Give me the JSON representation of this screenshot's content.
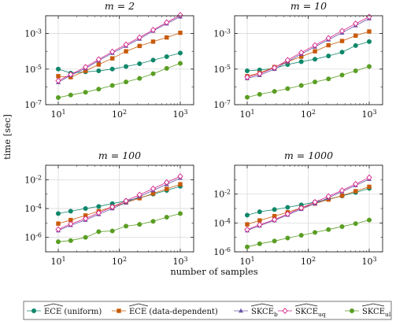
{
  "figure": {
    "xlabel": "number of samples",
    "ylabel": "time [sec]"
  },
  "legend": [
    {
      "label": "ECE (uniform)",
      "color": "#10876b",
      "marker": "circle"
    },
    {
      "label": "ECE (data-dependent)",
      "color": "#c85a0a",
      "marker": "square"
    },
    {
      "label": "SKCE_b",
      "color": "#6b56a6",
      "marker": "triangle"
    },
    {
      "label": "SKCE_uq",
      "color": "#d6248a",
      "marker": "diamond"
    },
    {
      "label": "SKCE_ul",
      "color": "#5a9e24",
      "marker": "circle"
    }
  ],
  "chart_data": [
    {
      "type": "line",
      "title": "m = 2",
      "xscale": "log",
      "yscale": "log",
      "xlim": [
        10,
        1000
      ],
      "ylim": [
        1e-07,
        0.01
      ],
      "xticks": [
        "10^1",
        "10^2",
        "10^3"
      ],
      "yticks": [
        "10^-7",
        "10^-5",
        "10^-3"
      ],
      "grid": true,
      "x": [
        10,
        16,
        28,
        46,
        77,
        129,
        215,
        359,
        599,
        1000
      ],
      "series": [
        {
          "name": "ECE (uniform)",
          "values": [
            1e-05,
            6e-06,
            7e-06,
            8e-06,
            1e-05,
            1.4e-05,
            2e-05,
            3.2e-05,
            5e-05,
            8e-05
          ]
        },
        {
          "name": "ECE (data-dependent)",
          "values": [
            4e-06,
            3.5e-06,
            8e-06,
            1.8e-05,
            4e-05,
            0.0001,
            0.0002,
            0.00035,
            0.0006,
            0.0011
          ]
        },
        {
          "name": "SKCE_b",
          "values": [
            1.8e-06,
            4.5e-06,
            1.1e-05,
            3e-05,
            8e-05,
            0.0002,
            0.0005,
            0.0014,
            0.0036,
            0.009
          ]
        },
        {
          "name": "SKCE_uq",
          "values": [
            2.2e-06,
            5e-06,
            1.3e-05,
            3.5e-05,
            9.5e-05,
            0.00024,
            0.0006,
            0.0016,
            0.0042,
            0.011
          ]
        },
        {
          "name": "SKCE_ul",
          "values": [
            2.5e-07,
            3.5e-07,
            5e-07,
            7.5e-07,
            1.2e-06,
            1.9e-06,
            3e-06,
            5.5e-06,
            1.1e-05,
            2.1e-05
          ]
        }
      ]
    },
    {
      "type": "line",
      "title": "m = 10",
      "xscale": "log",
      "yscale": "log",
      "xlim": [
        10,
        1000
      ],
      "ylim": [
        1e-07,
        0.01
      ],
      "xticks": [
        "10^1",
        "10^2",
        "10^3"
      ],
      "yticks": [
        "10^-7",
        "10^-5",
        "10^-3"
      ],
      "grid": true,
      "x": [
        10,
        16,
        28,
        46,
        77,
        129,
        215,
        359,
        599,
        1000
      ],
      "series": [
        {
          "name": "ECE (uniform)",
          "values": [
            8e-06,
            9e-06,
            1.1e-05,
            1.8e-05,
            2.6e-05,
            3.6e-05,
            5.5e-05,
            9e-05,
            0.00021,
            0.00035
          ]
        },
        {
          "name": "ECE (data-dependent)",
          "values": [
            4e-06,
            6e-06,
            1.3e-05,
            2.6e-05,
            5e-05,
            0.0001,
            0.00022,
            0.00038,
            0.00076,
            0.0013
          ]
        },
        {
          "name": "SKCE_b",
          "values": [
            3e-06,
            4.5e-06,
            1e-05,
            2.6e-05,
            7e-05,
            0.00018,
            0.00045,
            0.0011,
            0.0028,
            0.007
          ]
        },
        {
          "name": "SKCE_uq",
          "values": [
            3.5e-06,
            5.5e-06,
            1.2e-05,
            3.2e-05,
            8.5e-05,
            0.00022,
            0.00055,
            0.0014,
            0.0036,
            0.0087
          ]
        },
        {
          "name": "SKCE_ul",
          "values": [
            2.6e-07,
            3.8e-07,
            5.6e-07,
            8e-07,
            1.2e-06,
            1.9e-06,
            2.8e-06,
            4.6e-06,
            8e-06,
            1.4e-05
          ]
        }
      ]
    },
    {
      "type": "line",
      "title": "m = 100",
      "xscale": "log",
      "yscale": "log",
      "xlim": [
        10,
        1000
      ],
      "ylim": [
        1e-07,
        0.1
      ],
      "xticks": [
        "10^1",
        "10^2",
        "10^3"
      ],
      "yticks": [
        "10^-6",
        "10^-4",
        "10^-2"
      ],
      "grid": true,
      "x": [
        10,
        16,
        28,
        46,
        77,
        129,
        215,
        359,
        599,
        1000
      ],
      "series": [
        {
          "name": "ECE (uniform)",
          "values": [
            4.5e-05,
            6.5e-05,
            0.0001,
            0.00014,
            0.00022,
            0.00034,
            0.00056,
            0.001,
            0.0018,
            0.0035
          ]
        },
        {
          "name": "ECE (data-dependent)",
          "values": [
            9e-06,
            1.6e-05,
            3.3e-05,
            6.5e-05,
            0.00013,
            0.00026,
            0.00052,
            0.0011,
            0.0023,
            0.0048
          ]
        },
        {
          "name": "SKCE_b",
          "values": [
            3e-06,
            7e-06,
            1.6e-05,
            4e-05,
            0.0001,
            0.00026,
            0.00068,
            0.0018,
            0.0048,
            0.013
          ]
        },
        {
          "name": "SKCE_uq",
          "values": [
            3.6e-06,
            8.5e-06,
            2e-05,
            5e-05,
            0.00013,
            0.00034,
            0.0009,
            0.0024,
            0.0065,
            0.017
          ]
        },
        {
          "name": "SKCE_ul",
          "values": [
            5e-07,
            6e-07,
            1e-06,
            2.5e-06,
            2.8e-06,
            6e-06,
            8e-06,
            1.3e-05,
            2.5e-05,
            4.5e-05
          ]
        }
      ]
    },
    {
      "type": "line",
      "title": "m = 1000",
      "xscale": "log",
      "yscale": "log",
      "xlim": [
        10,
        1000
      ],
      "ylim": [
        1e-06,
        1.0
      ],
      "xticks": [
        "10^1",
        "10^2",
        "10^3"
      ],
      "yticks": [
        "10^-6",
        "10^-4",
        "10^-2"
      ],
      "grid": true,
      "x": [
        10,
        16,
        28,
        46,
        77,
        129,
        215,
        359,
        599,
        1000
      ],
      "series": [
        {
          "name": "ECE (uniform)",
          "values": [
            0.00035,
            0.0006,
            0.00085,
            0.0012,
            0.0018,
            0.0028,
            0.0045,
            0.0075,
            0.013,
            0.025
          ]
        },
        {
          "name": "ECE (data-dependent)",
          "values": [
            8e-05,
            0.00015,
            0.0003,
            0.00055,
            0.0011,
            0.0022,
            0.0042,
            0.0078,
            0.016,
            0.032
          ]
        },
        {
          "name": "SKCE_b",
          "values": [
            3e-05,
            6.5e-05,
            0.00015,
            0.00036,
            0.0009,
            0.0022,
            0.0055,
            0.015,
            0.04,
            0.11
          ]
        },
        {
          "name": "SKCE_uq",
          "values": [
            3.5e-05,
            7.5e-05,
            0.00017,
            0.00042,
            0.0011,
            0.0028,
            0.007,
            0.018,
            0.05,
            0.14
          ]
        },
        {
          "name": "SKCE_ul",
          "values": [
            2.2e-06,
            3.6e-06,
            5.6e-06,
            9e-06,
            1.4e-05,
            2.2e-05,
            3.5e-05,
            5.6e-05,
            9e-05,
            0.00016
          ]
        }
      ]
    }
  ]
}
